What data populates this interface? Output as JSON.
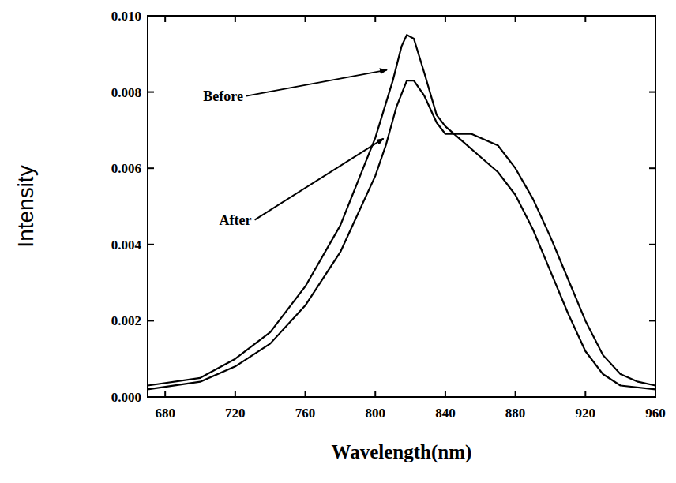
{
  "chart_data": {
    "type": "line",
    "x_label": "Wavelength(nm)",
    "y_label": "Intensity",
    "xlim": [
      670,
      960
    ],
    "xticks": [
      680,
      720,
      760,
      800,
      840,
      880,
      920,
      960
    ],
    "ylim": [
      0,
      0.01
    ],
    "yticks": [
      {
        "value": 0,
        "label": "0.000"
      },
      0.002,
      0.004,
      0.006,
      0.008,
      {
        "value": 0.01,
        "label": "0.010"
      }
    ],
    "grid": false,
    "series": [
      {
        "color": "#000000",
        "line_style": "solid",
        "x": [
          670,
          700,
          720,
          740,
          760,
          780,
          800,
          810,
          815,
          818,
          822,
          828,
          835,
          840,
          850,
          860,
          870,
          880,
          890,
          900,
          910,
          920,
          930,
          940,
          960
        ],
        "values": [
          0.0003,
          0.0005,
          0.001,
          0.0017,
          0.0029,
          0.0045,
          0.0068,
          0.0083,
          0.0092,
          0.0095,
          0.0094,
          0.0085,
          0.0074,
          0.0071,
          0.0067,
          0.0063,
          0.0059,
          0.0053,
          0.0044,
          0.0033,
          0.0022,
          0.0012,
          0.0006,
          0.0003,
          0.0002
        ]
      },
      {
        "color": "#000000",
        "line_style": "solid",
        "x": [
          670,
          700,
          720,
          740,
          760,
          780,
          800,
          806,
          812,
          818,
          822,
          828,
          835,
          840,
          845,
          855,
          865,
          870,
          880,
          890,
          900,
          910,
          920,
          930,
          940,
          950,
          960
        ],
        "values": [
          0.0002,
          0.0004,
          0.0008,
          0.0014,
          0.0024,
          0.0038,
          0.0058,
          0.0066,
          0.0076,
          0.0083,
          0.0083,
          0.0079,
          0.0072,
          0.0069,
          0.0069,
          0.0069,
          0.0067,
          0.0066,
          0.006,
          0.0052,
          0.0042,
          0.0031,
          0.002,
          0.0011,
          0.0006,
          0.0004,
          0.0003
        ]
      }
    ],
    "annotations": [
      {
        "text": "Before",
        "x": 808,
        "y": 0.0086
      },
      {
        "text": "After",
        "x": 806,
        "y": 0.0068
      }
    ]
  }
}
